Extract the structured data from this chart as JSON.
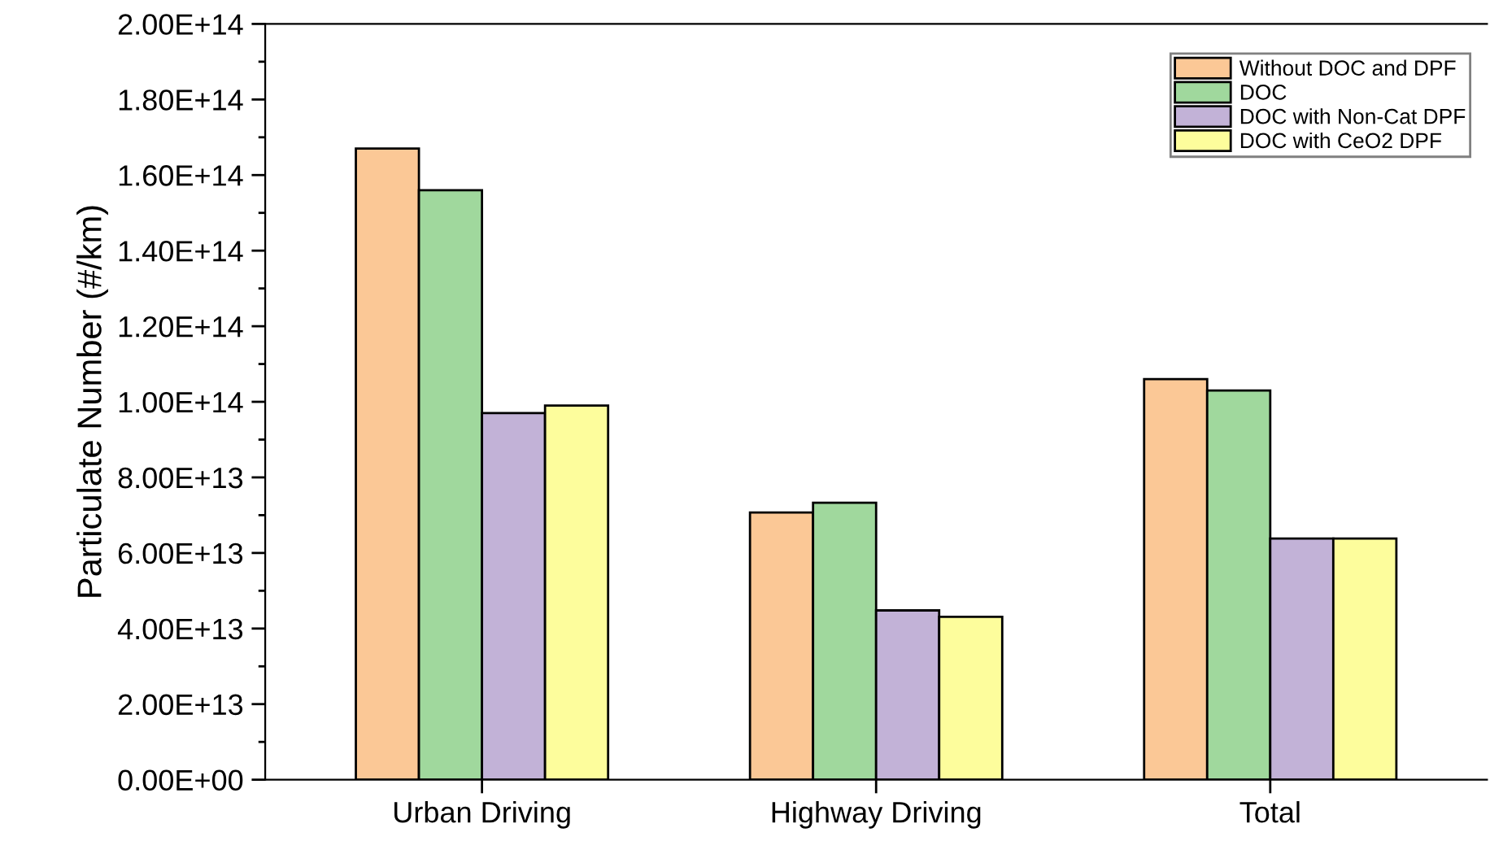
{
  "chart_data": {
    "type": "bar",
    "ylabel": "Particulate Number (#/km)",
    "categories": [
      "Urban Driving",
      "Highway Driving",
      "Total"
    ],
    "series": [
      {
        "name": "Without DOC and DPF",
        "color": "#fbc896",
        "values": [
          167000000000000.0,
          70700000000000.0,
          106000000000000.0
        ]
      },
      {
        "name": "DOC",
        "color": "#a0d89d",
        "values": [
          156000000000000.0,
          73300000000000.0,
          103000000000000.0
        ]
      },
      {
        "name": "DOC with Non-Cat DPF",
        "color": "#c2b2d7",
        "values": [
          97000000000000.0,
          44800000000000.0,
          63800000000000.0
        ]
      },
      {
        "name": "DOC with CeO2 DPF",
        "color": "#fdfd9c",
        "values": [
          99000000000000.0,
          43100000000000.0,
          63800000000000.0
        ]
      }
    ],
    "ylim": [
      0,
      200000000000000.0
    ],
    "yticks": [
      {
        "value": 0,
        "label": "0.00E+00"
      },
      {
        "value": 20000000000000.0,
        "label": "2.00E+13"
      },
      {
        "value": 40000000000000.0,
        "label": "4.00E+13"
      },
      {
        "value": 60000000000000.0,
        "label": "6.00E+13"
      },
      {
        "value": 80000000000000.0,
        "label": "8.00E+13"
      },
      {
        "value": 100000000000000.0,
        "label": "1.00E+14"
      },
      {
        "value": 120000000000000.0,
        "label": "1.20E+14"
      },
      {
        "value": 140000000000000.0,
        "label": "1.40E+14"
      },
      {
        "value": 160000000000000.0,
        "label": "1.60E+14"
      },
      {
        "value": 180000000000000.0,
        "label": "1.80E+14"
      },
      {
        "value": 200000000000000.0,
        "label": "2.00E+14"
      }
    ],
    "grid": false,
    "legend": "top right"
  }
}
